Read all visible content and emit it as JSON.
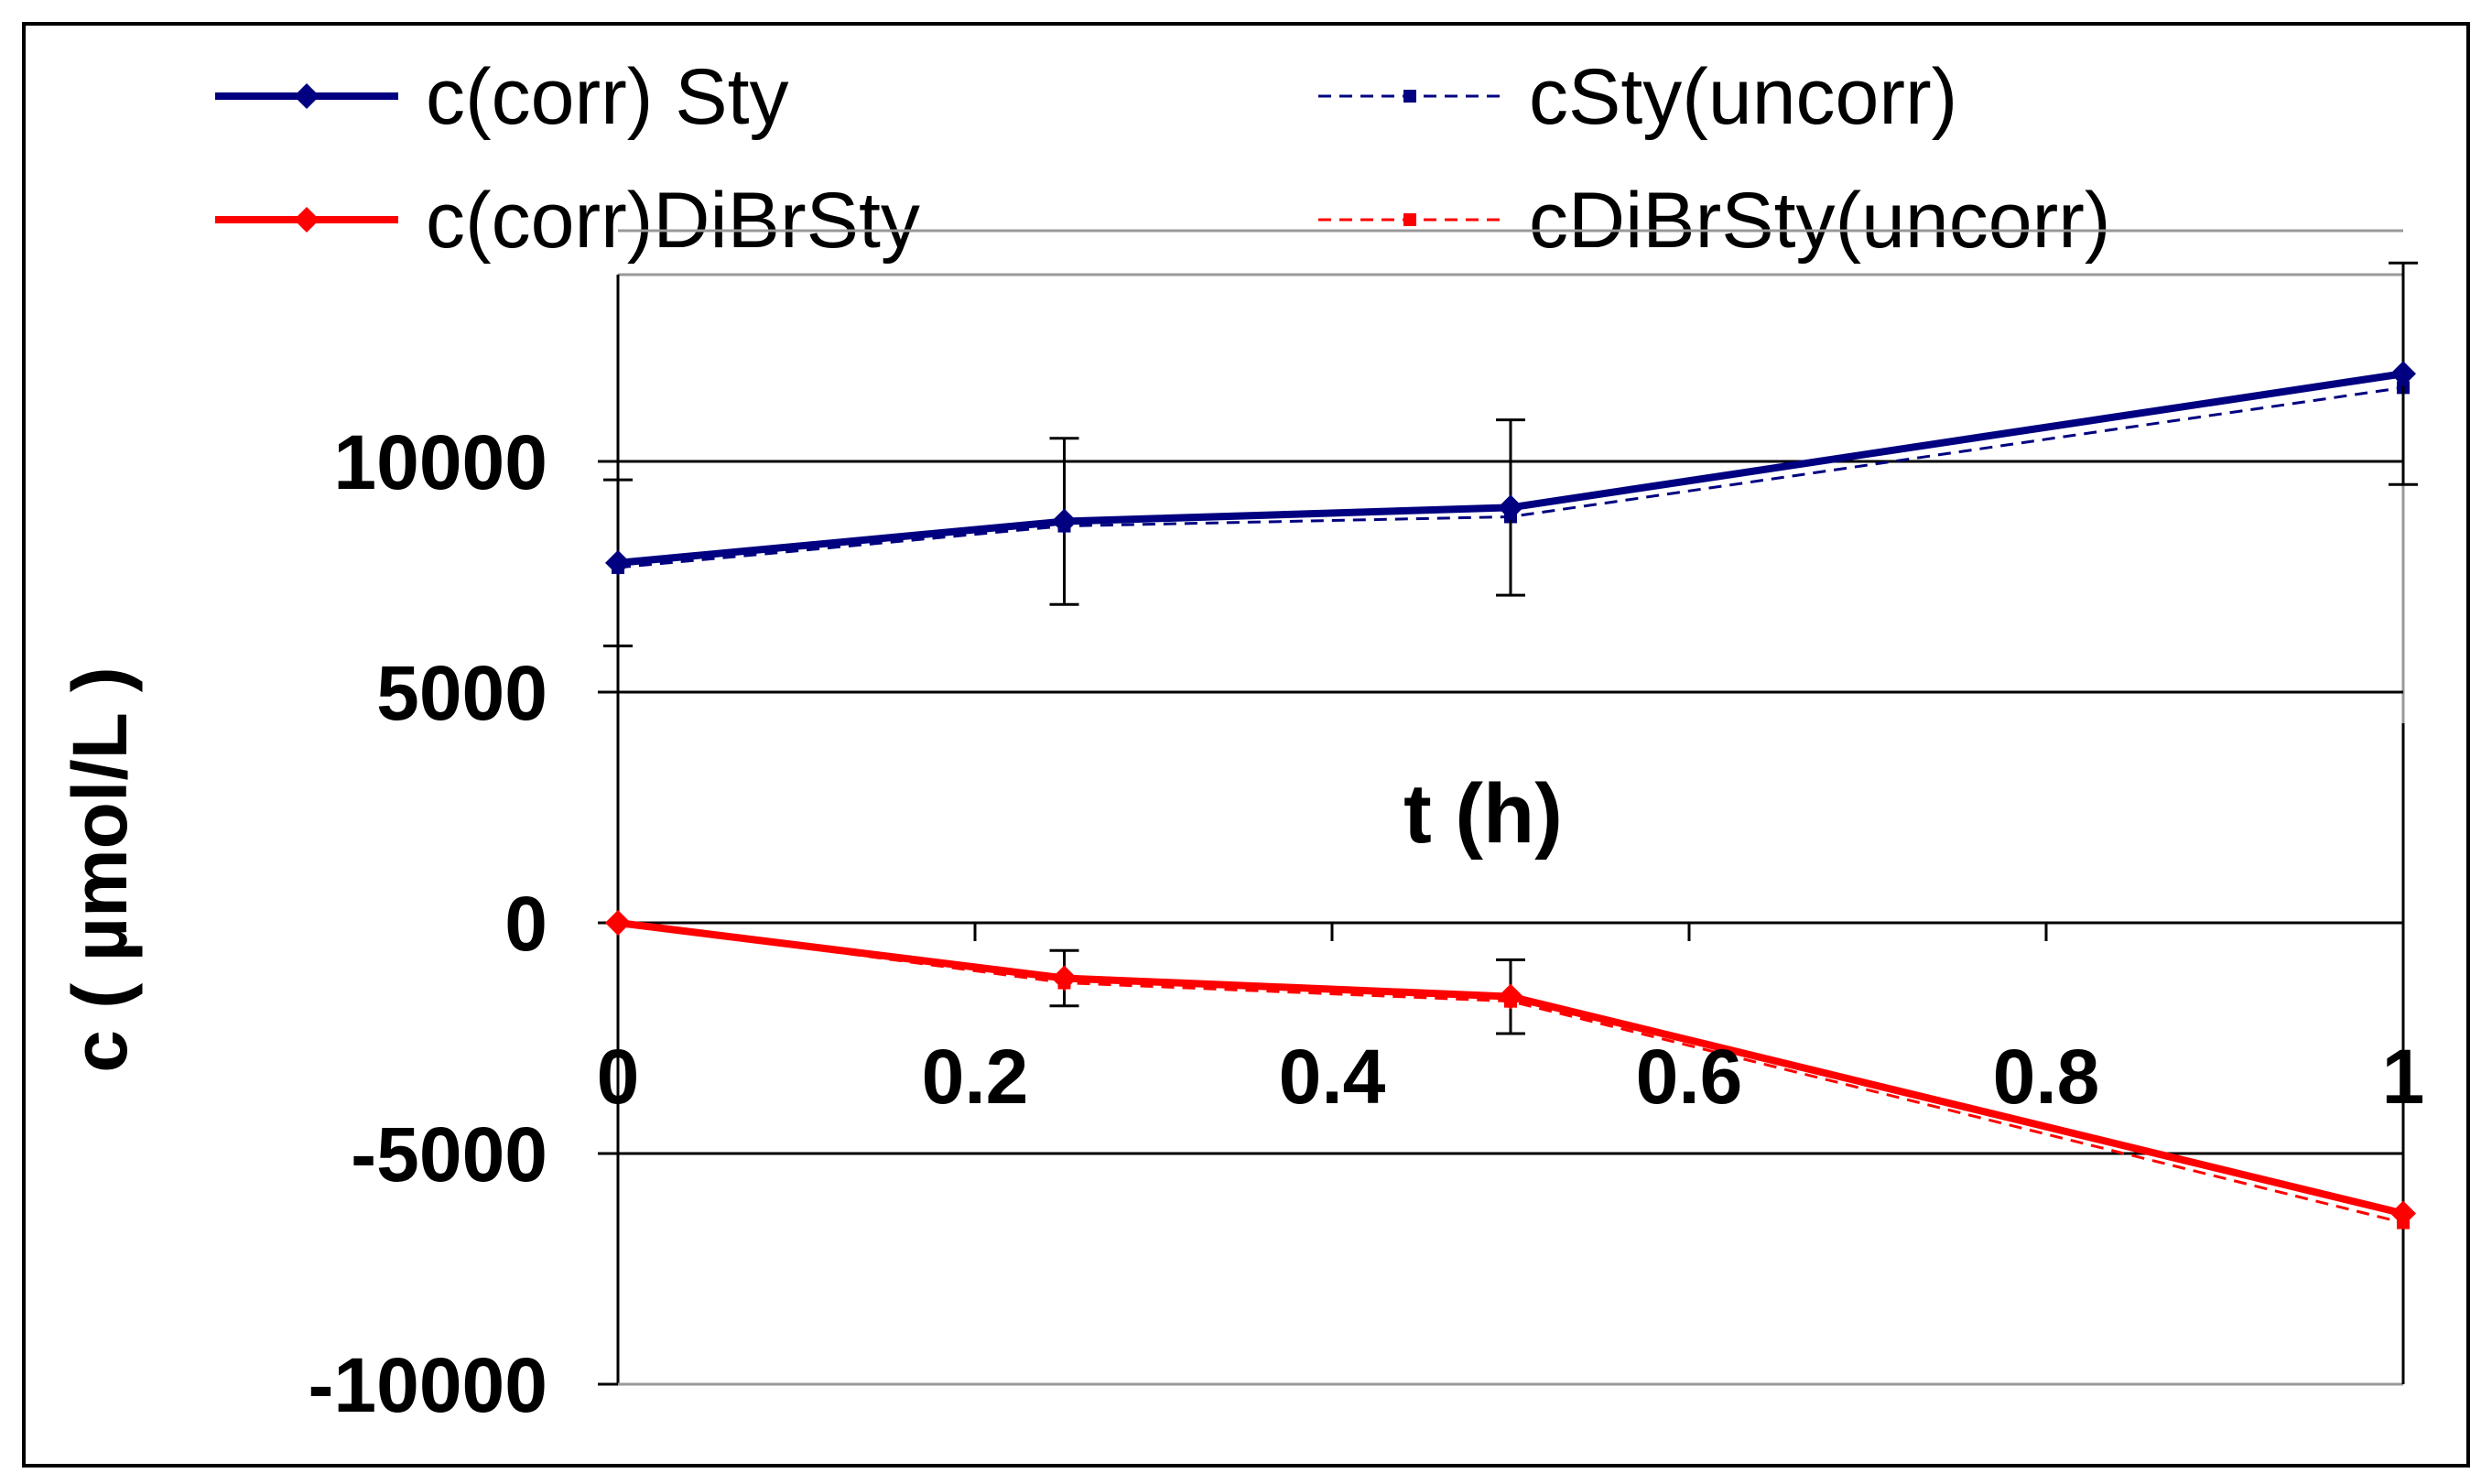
{
  "chart_data": {
    "type": "line",
    "title": "",
    "xlabel": "t (h)",
    "ylabel": "c ( µmol/L )",
    "xlim": [
      0,
      1
    ],
    "ylim": [
      -10000,
      15000
    ],
    "x_ticks": [
      "0",
      "0.2",
      "0.4",
      "0.6",
      "0.8",
      "1"
    ],
    "y_ticks": [
      "-10000",
      "-5000",
      "0",
      "5000",
      "10000"
    ],
    "gridlines": "horizontal",
    "legend_position": "top",
    "series": [
      {
        "name": "c(corr) Sty",
        "color": "#000080",
        "style": "solid",
        "marker": "diamond",
        "x": [
          0,
          0.25,
          0.5,
          1
        ],
        "y": [
          7800,
          8700,
          9000,
          11900
        ],
        "error": [
          1800,
          1800,
          1900,
          2400
        ]
      },
      {
        "name": "cSty(uncorr)",
        "color": "#000080",
        "style": "dashed",
        "marker": "square",
        "x": [
          0,
          0.25,
          0.5,
          1
        ],
        "y": [
          7700,
          8600,
          8800,
          11600
        ]
      },
      {
        "name": "c(corr)DiBrSty",
        "color": "#ff0000",
        "style": "solid",
        "marker": "diamond",
        "x": [
          0,
          0.25,
          0.5,
          1
        ],
        "y": [
          0,
          -1200,
          -1600,
          -6300
        ],
        "error": [
          0,
          600,
          800,
          0
        ]
      },
      {
        "name": "cDiBrSty(uncorr)",
        "color": "#ff0000",
        "style": "dashed",
        "marker": "square",
        "x": [
          0,
          0.25,
          0.5,
          1
        ],
        "y": [
          0,
          -1300,
          -1700,
          -6500
        ]
      }
    ]
  }
}
